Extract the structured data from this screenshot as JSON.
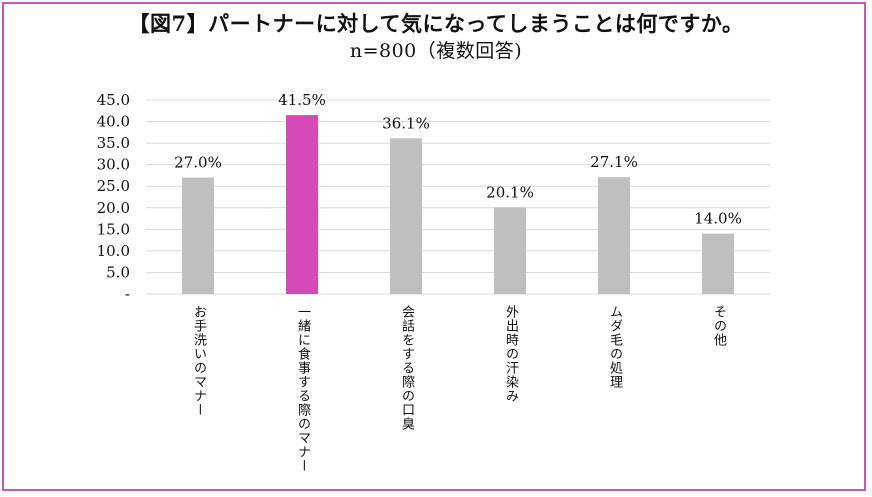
{
  "chart_data": {
    "type": "bar",
    "title": "【図7】パートナーに対して気になってしまうことは何ですか。",
    "subtitle": "n=800（複数回答)",
    "categories": [
      "お手洗いのマナー",
      "一緒に食事する際のマナー",
      "会話をする際の口臭",
      "外出時の汗染み",
      "ムダ毛の処理",
      "その他"
    ],
    "values": [
      27.0,
      41.5,
      36.1,
      20.1,
      27.1,
      14.0
    ],
    "value_labels": [
      "27.0%",
      "41.5%",
      "36.1%",
      "20.1%",
      "27.1%",
      "14.0%"
    ],
    "highlight_index": 1,
    "ylim": [
      0,
      45
    ],
    "yticks": [
      0,
      5,
      10,
      15,
      20,
      25,
      30,
      35,
      40,
      45
    ],
    "ytick_labels": [
      "-",
      "5.0",
      "10.0",
      "15.0",
      "20.0",
      "25.0",
      "30.0",
      "35.0",
      "40.0",
      "45.0"
    ],
    "xlabel": "",
    "ylabel": "",
    "grid": true
  },
  "colors": {
    "bar": "#bfbfbf",
    "highlight": "#d64ab8",
    "grid": "#d9d9d9",
    "frame": "#cc55bb"
  }
}
